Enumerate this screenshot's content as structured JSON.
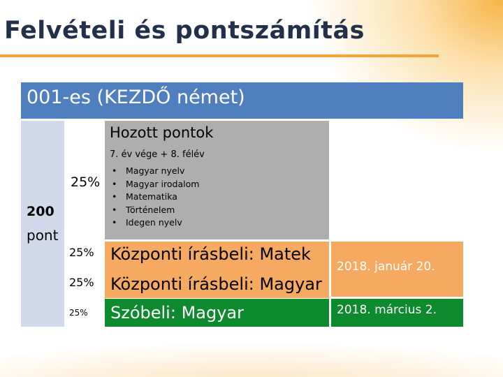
{
  "slide": {
    "title": "Felvételi és pontszámítás",
    "header": "001-es (KEZDŐ német)",
    "total_points": "200",
    "points_unit": "pont",
    "hozott": {
      "percent": "25%",
      "title": "Hozott pontok",
      "subtitle": "7. év vége + 8. félév",
      "subjects": [
        "Magyar nyelv",
        "Magyar irodalom",
        "Matematika",
        "Történelem",
        "Idegen nyelv"
      ]
    },
    "rows": [
      {
        "percent": "25%",
        "label": "Központi írásbeli: Matek"
      },
      {
        "percent": "25%",
        "label": "Központi írásbeli: Magyar"
      },
      {
        "percent": "25%",
        "label": "Szóbeli: Magyar"
      }
    ],
    "dates": {
      "written": "2018. január 20.",
      "oral": "2018. március 2."
    },
    "colors": {
      "title": "#23304a",
      "accent_orange": "#f2a33a",
      "header_blue": "#4f7fbe",
      "left_column": "#d2d9ea",
      "hozott_grey": "#aeaeae",
      "written_orange": "#f6a960",
      "oral_green": "#0e8a2e"
    }
  }
}
